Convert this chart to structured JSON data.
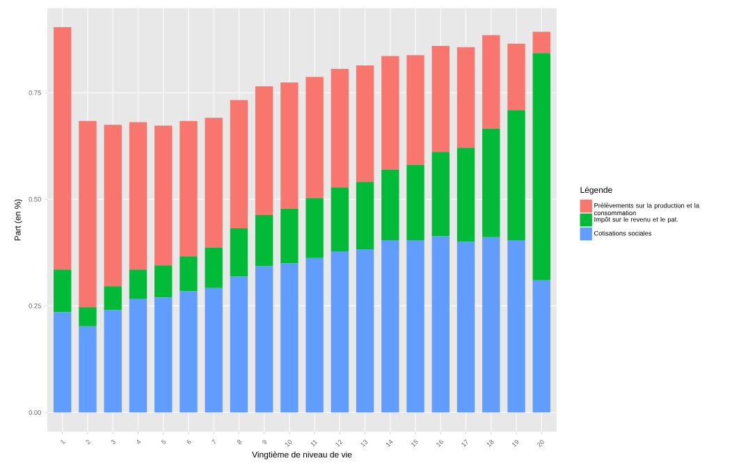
{
  "chart_data": {
    "type": "bar",
    "stacked": true,
    "xlabel": "Vingtième de niveau de vie",
    "ylabel": "Part (en %)",
    "legend_title": "Légende",
    "categories": [
      "1",
      "2",
      "3",
      "4",
      "5",
      "6",
      "7",
      "8",
      "9",
      "10",
      "11",
      "12",
      "13",
      "14",
      "15",
      "16",
      "17",
      "18",
      "19",
      "20"
    ],
    "series": [
      {
        "name": "Cotisations sociales",
        "color": "#619cff",
        "values": [
          0.235,
          0.202,
          0.24,
          0.267,
          0.27,
          0.284,
          0.292,
          0.319,
          0.343,
          0.35,
          0.362,
          0.378,
          0.383,
          0.404,
          0.404,
          0.413,
          0.4,
          0.411,
          0.404,
          0.31
        ]
      },
      {
        "name": "Impôt sur le revenu et le pat.",
        "color": "#00ba38",
        "values": [
          0.1,
          0.045,
          0.056,
          0.068,
          0.075,
          0.082,
          0.095,
          0.113,
          0.12,
          0.128,
          0.141,
          0.15,
          0.158,
          0.166,
          0.177,
          0.198,
          0.221,
          0.255,
          0.305,
          0.533
        ]
      },
      {
        "name": "Prélèvements sur la production et la consommation",
        "color": "#f8766d",
        "values": [
          0.569,
          0.437,
          0.379,
          0.346,
          0.328,
          0.318,
          0.304,
          0.301,
          0.302,
          0.296,
          0.284,
          0.278,
          0.273,
          0.266,
          0.257,
          0.249,
          0.236,
          0.219,
          0.156,
          0.05
        ]
      }
    ],
    "ylim": [
      -0.045,
      0.948
    ],
    "yticks": [
      {
        "value": 0,
        "label": "0.00"
      },
      {
        "value": 0.25,
        "label": "0.25"
      },
      {
        "value": 0.5,
        "label": "0.50"
      },
      {
        "value": 0.75,
        "label": "0.75"
      }
    ],
    "grid": true,
    "legend": "right"
  }
}
